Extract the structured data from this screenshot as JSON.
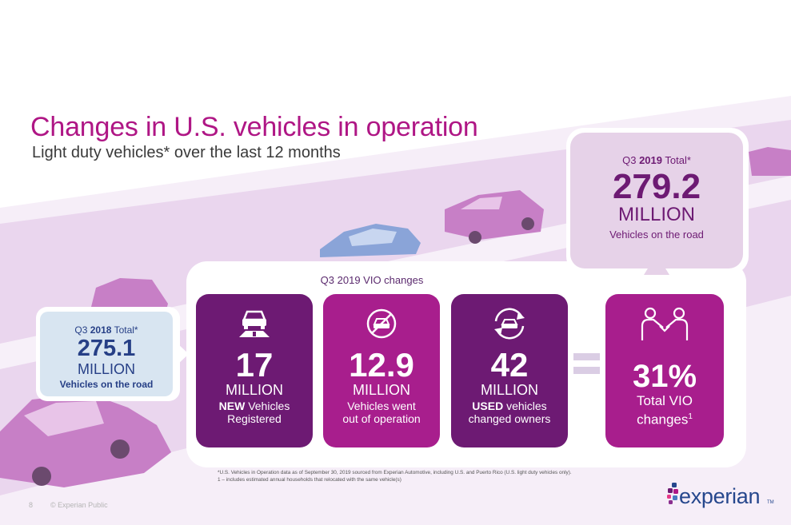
{
  "header": {
    "title": "Changes in U.S. vehicles in operation",
    "subtitle": "Light duty vehicles* over the last 12 months"
  },
  "q3_2018": {
    "label_prefix": "Q3",
    "label_year": "2018",
    "label_suffix": "Total*",
    "value": "275.1",
    "unit": "MILLION",
    "description": "Vehicles on the road"
  },
  "q3_2019": {
    "label_prefix": "Q3",
    "label_year": "2019",
    "label_suffix": "Total*",
    "value": "279.2",
    "unit": "MILLION",
    "description": "Vehicles on the road"
  },
  "changes": {
    "heading": "Q3 2019 VIO changes",
    "new": {
      "icon": "car-on-road-icon",
      "value": "17",
      "unit": "MILLION",
      "desc_bold": "NEW",
      "desc_rest": "Vehicles",
      "desc_line2": "Registered"
    },
    "out": {
      "icon": "no-car-icon",
      "value": "12.9",
      "unit": "MILLION",
      "desc_line1": "Vehicles went",
      "desc_line2": "out of operation"
    },
    "used": {
      "icon": "car-cycle-icon",
      "value": "42",
      "unit": "MILLION",
      "desc_bold": "USED",
      "desc_rest": "vehicles",
      "desc_line2": "changed owners"
    },
    "total": {
      "icon": "handshake-icon",
      "value": "31%",
      "desc_line1": "Total VIO",
      "desc_line2": "changes",
      "desc_sup": "1"
    }
  },
  "footnotes": {
    "line1": "*U.S. Vehicles in Operation data as of September 30, 2019 sourced from Experian Automotive, including U.S. and Puerto Rico (U.S. light duty vehicles only).",
    "line2": "1 – includes estimated annual households that relocated with the same vehicle(s)"
  },
  "footer": {
    "page_number": "8",
    "copyright": "© Experian Public"
  },
  "logo": {
    "word": "experian",
    "tm": "TM"
  },
  "colors": {
    "title": "#af1685",
    "dark_purple": "#6d1a73",
    "magenta": "#a81e8d",
    "light_blue": "#d8e5f1",
    "navy": "#263f86",
    "light_lilac": "#e6d2e8",
    "road": "#e8d4ec"
  }
}
